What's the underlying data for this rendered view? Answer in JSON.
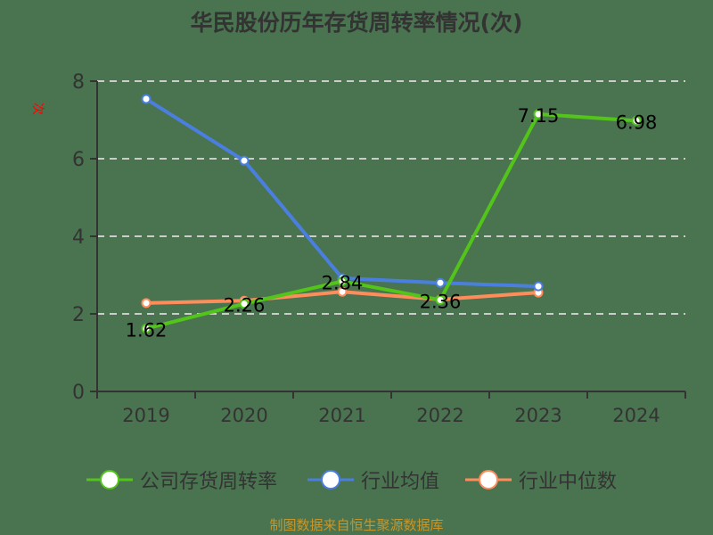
{
  "title": "华民股份历年存货周转率情况(次)",
  "y_unit_label": "次",
  "source": "制图数据来自恒生聚源数据库",
  "colors": {
    "background": "#4a7350",
    "company": "#52c41a",
    "industry_avg": "#4a7fe0",
    "industry_median": "#ff8c5a",
    "axis": "#333333",
    "grid": "#cccccc"
  },
  "legend": [
    {
      "name": "公司存货周转率",
      "color": "#52c41a"
    },
    {
      "name": "行业均值",
      "color": "#4a7fe0"
    },
    {
      "name": "行业中位数",
      "color": "#ff8c5a"
    }
  ],
  "chart_data": {
    "type": "line",
    "title": "华民股份历年存货周转率情况(次)",
    "xlabel": "",
    "ylabel": "次",
    "categories": [
      "2019",
      "2020",
      "2021",
      "2022",
      "2023",
      "2024"
    ],
    "ylim": [
      0,
      8
    ],
    "yticks": [
      0,
      2,
      4,
      6,
      8
    ],
    "grid": true,
    "legend_position": "bottom",
    "series": [
      {
        "name": "公司存货周转率",
        "values": [
          1.62,
          2.26,
          2.84,
          2.36,
          7.15,
          6.98
        ],
        "labels": [
          "1.62",
          "2.26",
          "2.84",
          "2.36",
          "7.15",
          "6.98"
        ]
      },
      {
        "name": "行业均值",
        "values": [
          7.54,
          5.95,
          2.92,
          2.8,
          2.71,
          null
        ]
      },
      {
        "name": "行业中位数",
        "values": [
          2.28,
          2.34,
          2.57,
          2.37,
          2.55,
          null
        ]
      }
    ]
  }
}
